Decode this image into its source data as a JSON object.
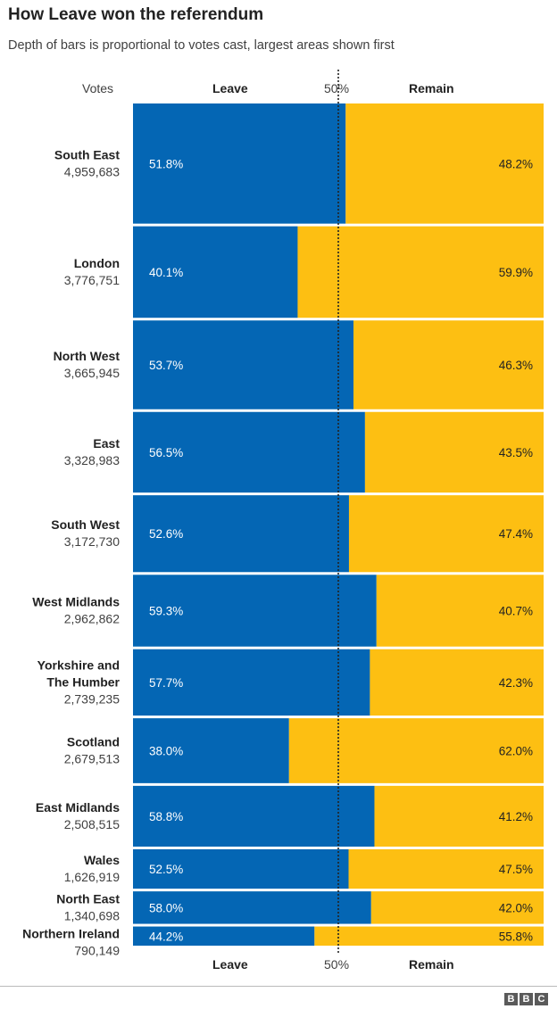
{
  "title": "How Leave won the referendum",
  "subtitle": "Depth of bars is proportional to votes cast, largest areas shown first",
  "headers": {
    "votes": "Votes",
    "leave": "Leave",
    "fifty": "50%",
    "remain": "Remain"
  },
  "brand": {
    "letters": [
      "B",
      "B",
      "C"
    ]
  },
  "colors": {
    "leave": "#0466b4",
    "remain": "#fdbf12",
    "midline": "#222222"
  },
  "chart_data": {
    "type": "bar",
    "orientation": "horizontal-stacked",
    "title": "How Leave won the referendum",
    "subtitle": "Depth of bars is proportional to votes cast, largest areas shown first",
    "reference_line": 50,
    "xlim": [
      0,
      100
    ],
    "series_names": [
      "Leave",
      "Remain"
    ],
    "rows": [
      {
        "region": "South East",
        "votes": "4,959,683",
        "votes_value": 4959683,
        "leave": 51.8,
        "remain": 48.2
      },
      {
        "region": "London",
        "votes": "3,776,751",
        "votes_value": 3776751,
        "leave": 40.1,
        "remain": 59.9
      },
      {
        "region": "North West",
        "votes": "3,665,945",
        "votes_value": 3665945,
        "leave": 53.7,
        "remain": 46.3
      },
      {
        "region": "East",
        "votes": "3,328,983",
        "votes_value": 3328983,
        "leave": 56.5,
        "remain": 43.5
      },
      {
        "region": "South West",
        "votes": "3,172,730",
        "votes_value": 3172730,
        "leave": 52.6,
        "remain": 47.4
      },
      {
        "region": "West Midlands",
        "votes": "2,962,862",
        "votes_value": 2962862,
        "leave": 59.3,
        "remain": 40.7
      },
      {
        "region": "Yorkshire and The Humber",
        "region_lines": [
          "Yorkshire and",
          "The Humber"
        ],
        "votes": "2,739,235",
        "votes_value": 2739235,
        "leave": 57.7,
        "remain": 42.3
      },
      {
        "region": "Scotland",
        "votes": "2,679,513",
        "votes_value": 2679513,
        "leave": 38.0,
        "remain": 62.0
      },
      {
        "region": "East Midlands",
        "votes": "2,508,515",
        "votes_value": 2508515,
        "leave": 58.8,
        "remain": 41.2
      },
      {
        "region": "Wales",
        "votes": "1,626,919",
        "votes_value": 1626919,
        "leave": 52.5,
        "remain": 47.5
      },
      {
        "region": "North East",
        "votes": "1,340,698",
        "votes_value": 1340698,
        "leave": 58.0,
        "remain": 42.0
      },
      {
        "region": "Northern Ireland",
        "votes": "790,149",
        "votes_value": 790149,
        "leave": 44.2,
        "remain": 55.8
      }
    ]
  }
}
